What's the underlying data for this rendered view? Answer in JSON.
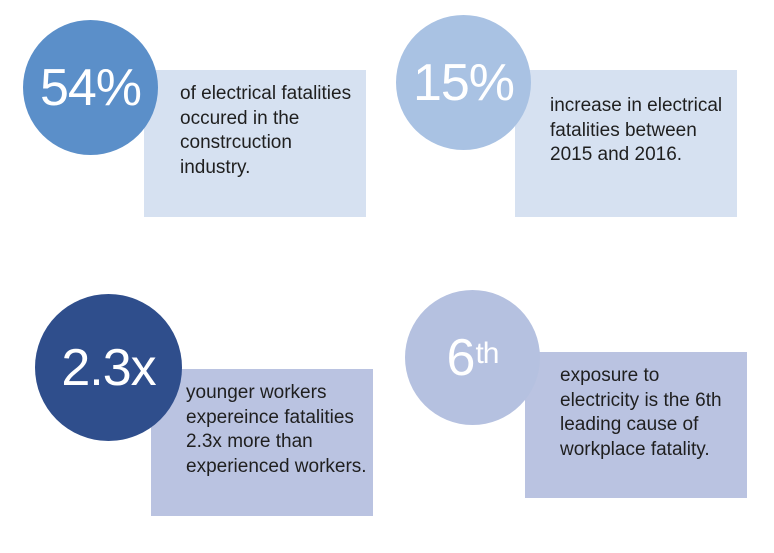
{
  "stats": [
    {
      "figure": "54%",
      "description": "of electrical fatalities occured in the constrcuction industry.",
      "circle_color": "#5b8fc9",
      "box_color": "#d6e1f1"
    },
    {
      "figure": "15%",
      "description": "increase in electrical fatalities between 2015 and 2016.",
      "circle_color": "#a9c2e3",
      "box_color": "#d6e1f1"
    },
    {
      "figure": "2.3x",
      "description": "younger workers expereince fatalities 2.3x more than experienced workers.",
      "circle_color": "#2f4e8c",
      "box_color": "#bac3e1"
    },
    {
      "figure_main": "6",
      "figure_suffix": "th",
      "description": "exposure to electricity is the 6th leading cause of workplace fatality.",
      "circle_color": "#b5c1e0",
      "box_color": "#bac3e1"
    }
  ]
}
